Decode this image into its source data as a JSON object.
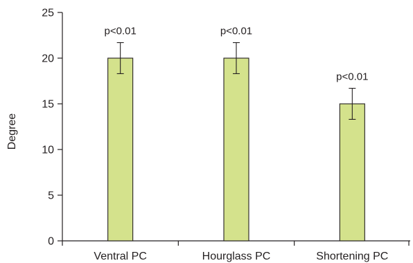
{
  "chart_data": {
    "type": "bar",
    "title": "",
    "xlabel": "",
    "ylabel": "Degree",
    "categories": [
      "Ventral PC",
      "Hourglass PC",
      "Shortening PC"
    ],
    "values": [
      20,
      20,
      15
    ],
    "errors": [
      1.7,
      1.7,
      1.7
    ],
    "annotations": [
      "p<0.01",
      "p<0.01",
      "p<0.01"
    ],
    "ylim": [
      0,
      25
    ],
    "yticks": [
      "0",
      "5",
      "10",
      "15",
      "20",
      "25"
    ],
    "grid": false,
    "legend": "none",
    "bar_color": "#d4e28c",
    "bar_stroke": "#231f20"
  }
}
